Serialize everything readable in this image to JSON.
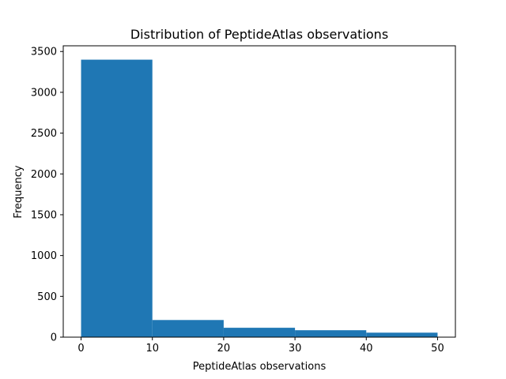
{
  "chart_data": {
    "type": "bar",
    "title": "Distribution of PeptideAtlas observations",
    "xlabel": "PeptideAtlas observations",
    "ylabel": "Frequency",
    "bins": [
      {
        "x0": 0,
        "x1": 10,
        "count": 3400
      },
      {
        "x0": 10,
        "x1": 20,
        "count": 210
      },
      {
        "x0": 20,
        "x1": 30,
        "count": 115
      },
      {
        "x0": 30,
        "x1": 40,
        "count": 85
      },
      {
        "x0": 40,
        "x1": 50,
        "count": 55
      }
    ],
    "xlim": [
      -2.5,
      52.5
    ],
    "ylim": [
      0,
      3570
    ],
    "xticks": [
      0,
      10,
      20,
      30,
      40,
      50
    ],
    "yticks": [
      0,
      500,
      1000,
      1500,
      2000,
      2500,
      3000,
      3500
    ],
    "bar_color": "#1f77b4",
    "grid": false
  }
}
